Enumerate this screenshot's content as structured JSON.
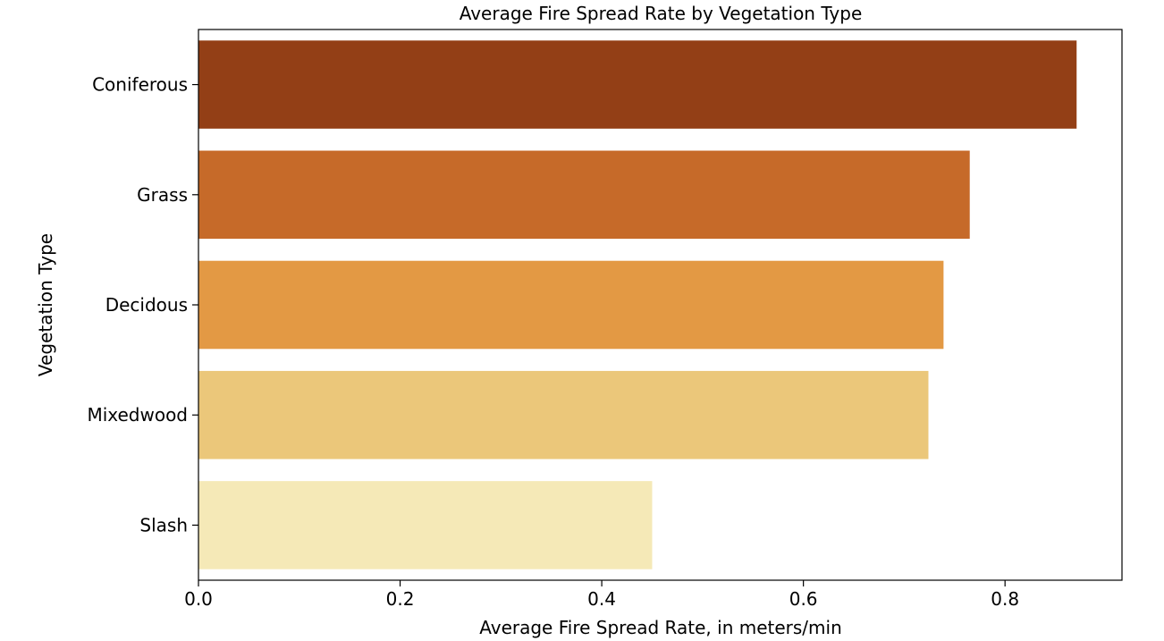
{
  "chart_data": {
    "type": "bar",
    "orientation": "horizontal",
    "title": "Average Fire Spread Rate by Vegetation Type",
    "xlabel": "Average Fire Spread Rate, in meters/min",
    "ylabel": "Vegetation Type",
    "categories": [
      "Coniferous",
      "Grass",
      "Decidous",
      "Mixedwood",
      "Slash"
    ],
    "values": [
      0.871,
      0.765,
      0.739,
      0.724,
      0.45
    ],
    "colors": [
      "#933f16",
      "#c66a29",
      "#e39944",
      "#ebc77a",
      "#f5e9b7"
    ],
    "xlim": [
      0,
      0.916
    ],
    "xticks": [
      0.0,
      0.2,
      0.4,
      0.6,
      0.8
    ],
    "xtick_labels": [
      "0.0",
      "0.2",
      "0.4",
      "0.6",
      "0.8"
    ],
    "grid": false,
    "legend": "none"
  }
}
